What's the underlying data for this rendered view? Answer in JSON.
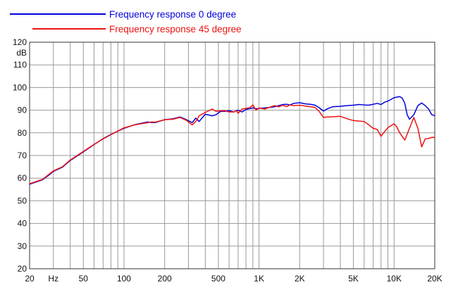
{
  "chart_data": {
    "type": "line",
    "title": "",
    "xlabel": "",
    "ylabel": "dB",
    "x_scale": "log",
    "xlim": [
      20,
      20000
    ],
    "ylim": [
      20,
      120
    ],
    "grid": true,
    "legend_position": "top-left",
    "x_tick_labels": [
      {
        "value": 20,
        "label": "20"
      },
      {
        "value": 30,
        "label": "Hz"
      },
      {
        "value": 50,
        "label": "50"
      },
      {
        "value": 100,
        "label": "100"
      },
      {
        "value": 200,
        "label": "200"
      },
      {
        "value": 500,
        "label": "500"
      },
      {
        "value": 1000,
        "label": "1K"
      },
      {
        "value": 2000,
        "label": "2K"
      },
      {
        "value": 5000,
        "label": "5K"
      },
      {
        "value": 10000,
        "label": "10K"
      },
      {
        "value": 20000,
        "label": "20K"
      }
    ],
    "y_ticks": [
      20,
      30,
      40,
      50,
      60,
      70,
      80,
      90,
      100,
      110,
      120
    ],
    "series": [
      {
        "name": "Frequency response 0 degree",
        "color": "#0000dd",
        "x": [
          20,
          25,
          28,
          30,
          35,
          40,
          50,
          60,
          70,
          80,
          100,
          120,
          150,
          160,
          170,
          200,
          230,
          260,
          290,
          320,
          340,
          360,
          400,
          450,
          480,
          520,
          560,
          600,
          650,
          680,
          700,
          750,
          800,
          850,
          900,
          950,
          1000,
          1100,
          1200,
          1300,
          1400,
          1500,
          1600,
          1700,
          1800,
          2000,
          2200,
          2400,
          2600,
          2800,
          3000,
          3200,
          3500,
          4000,
          4500,
          5000,
          5500,
          6000,
          6500,
          7000,
          7500,
          8000,
          8500,
          9000,
          10000,
          11000,
          11500,
          12000,
          12500,
          13000,
          14000,
          15000,
          16000,
          17000,
          18000,
          19000,
          20000
        ],
        "y": [
          57.3,
          59.3,
          61.5,
          63.0,
          64.8,
          67.8,
          71.6,
          74.8,
          77.4,
          79.3,
          82.0,
          83.6,
          84.8,
          84.5,
          84.5,
          85.8,
          86.2,
          87.0,
          85.8,
          84.5,
          86.5,
          85.0,
          88.2,
          87.5,
          88.0,
          89.5,
          89.5,
          89.8,
          89.2,
          89.8,
          90.0,
          89.2,
          90.3,
          90.7,
          91.0,
          90.6,
          90.8,
          91.0,
          91.2,
          91.5,
          92.0,
          92.5,
          92.6,
          92.3,
          93.0,
          93.3,
          92.8,
          92.6,
          92.2,
          91.0,
          89.6,
          90.6,
          91.5,
          91.7,
          92.0,
          92.2,
          92.5,
          92.3,
          92.2,
          92.6,
          93.0,
          92.5,
          93.5,
          94.0,
          95.5,
          96.0,
          95.3,
          93.0,
          88.0,
          86.0,
          88.0,
          92.0,
          93.2,
          92.0,
          90.5,
          88.0,
          87.6
        ]
      },
      {
        "name": "Frequency response 45 degree",
        "color": "#ee1111",
        "x": [
          20,
          25,
          28,
          30,
          35,
          40,
          50,
          60,
          70,
          80,
          100,
          120,
          150,
          160,
          170,
          200,
          230,
          260,
          290,
          320,
          340,
          360,
          400,
          450,
          480,
          520,
          560,
          600,
          650,
          680,
          700,
          750,
          800,
          850,
          900,
          950,
          1000,
          1100,
          1200,
          1300,
          1400,
          1500,
          1600,
          1700,
          1800,
          2000,
          2200,
          2400,
          2600,
          2800,
          3000,
          3200,
          3500,
          4000,
          4500,
          5000,
          5500,
          6000,
          6500,
          7000,
          7500,
          8000,
          8500,
          9000,
          10000,
          10500,
          11000,
          12000,
          13000,
          14000,
          15000,
          16000,
          17000,
          18000,
          19000,
          20000
        ],
        "y": [
          57.5,
          59.5,
          61.8,
          63.2,
          65.0,
          68.0,
          71.8,
          74.9,
          77.3,
          79.2,
          82.2,
          83.5,
          84.5,
          84.8,
          84.7,
          85.8,
          86.0,
          86.8,
          85.5,
          83.5,
          85.0,
          87.5,
          89.0,
          90.5,
          89.5,
          89.7,
          89.8,
          89.2,
          89.2,
          89.8,
          88.6,
          90.5,
          90.8,
          91.0,
          92.3,
          90.0,
          91.0,
          90.5,
          91.3,
          92.0,
          91.5,
          92.2,
          91.6,
          92.3,
          92.0,
          92.2,
          91.8,
          91.5,
          91.2,
          89.3,
          86.8,
          87.0,
          87.1,
          87.3,
          86.2,
          85.4,
          85.2,
          85.0,
          83.5,
          82.0,
          81.5,
          78.5,
          80.5,
          82.3,
          84.0,
          82.5,
          80.0,
          76.8,
          82.0,
          86.8,
          82.0,
          73.8,
          77.3,
          77.5,
          78.0,
          78.0
        ]
      }
    ]
  }
}
